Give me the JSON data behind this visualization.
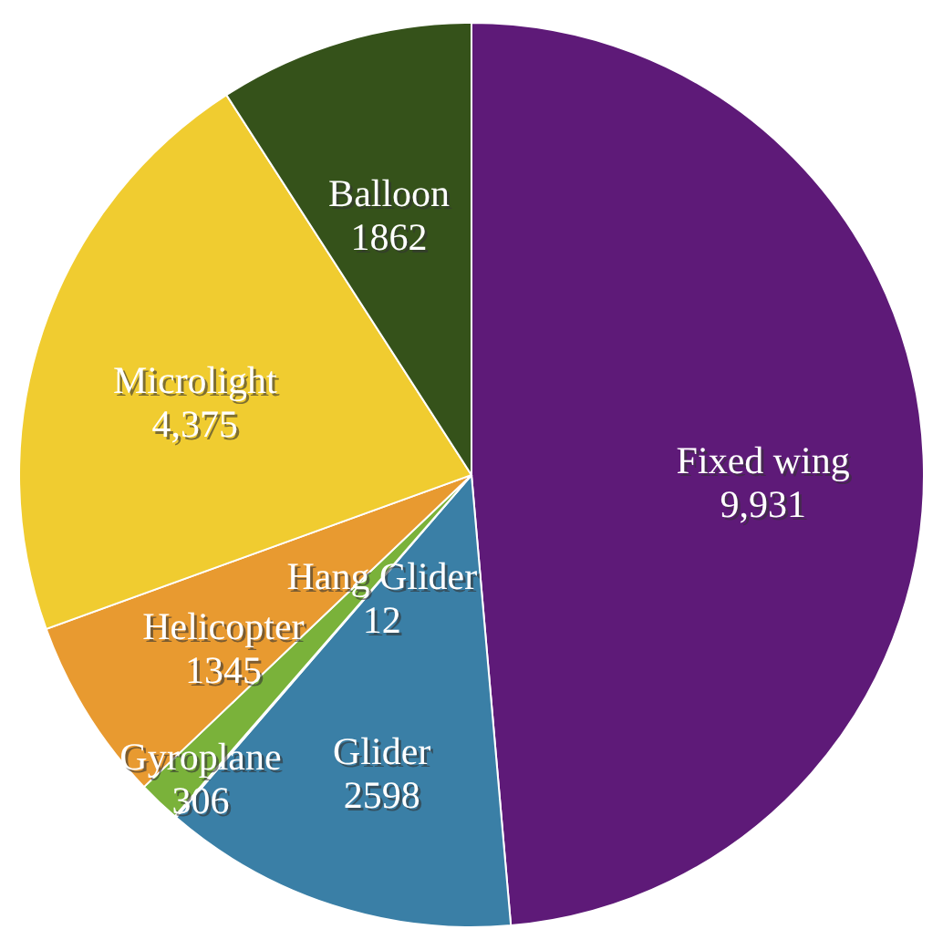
{
  "chart_data": {
    "type": "pie",
    "categories": [
      "Fixed wing",
      "Glider",
      "Hang Glider",
      "Gyroplane",
      "Helicopter",
      "Microlight",
      "Balloon"
    ],
    "values": [
      9931,
      2598,
      12,
      306,
      1345,
      4375,
      1862
    ],
    "value_labels": [
      "9,931",
      "2598",
      "12",
      "306",
      "1345",
      "4,375",
      "1862"
    ],
    "colors": [
      "#5e1a78",
      "#3a7fa6",
      "#8b2a1a",
      "#7ab23a",
      "#e89a30",
      "#f0cc30",
      "#35521a"
    ],
    "legend": false
  }
}
